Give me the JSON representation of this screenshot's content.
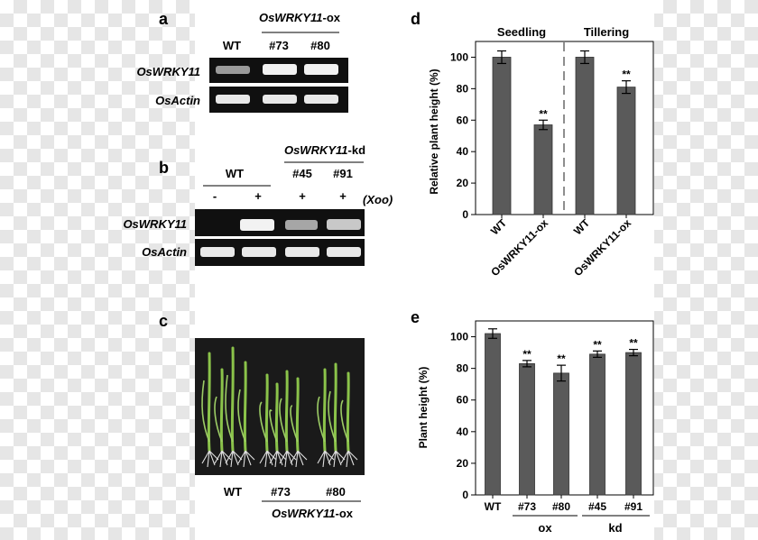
{
  "panel_labels": {
    "a": "a",
    "b": "b",
    "c": "c",
    "d": "d",
    "e": "e"
  },
  "colors": {
    "bar": "#5a5a5a",
    "gel_bg": "#101010",
    "gel_band": "#ffffff",
    "plant": "#8bc34a"
  },
  "panel_a": {
    "group_label_gene": "OsWRKY11",
    "group_label_suffix": "-ox",
    "lanes": [
      "WT",
      "#73",
      "#80"
    ],
    "rows": [
      "OsWRKY11",
      "OsActin"
    ]
  },
  "panel_b": {
    "wt_label": "WT",
    "group_label_gene": "OsWRKY11",
    "group_label_suffix": "-kd",
    "lines": [
      "#45",
      "#91"
    ],
    "treatments": [
      "-",
      "+",
      "+",
      "+"
    ],
    "xoo_label": "(Xoo)",
    "rows": [
      "OsWRKY11",
      "OsActin"
    ]
  },
  "panel_c": {
    "lanes": [
      "WT",
      "#73",
      "#80"
    ],
    "group_label_gene": "OsWRKY11",
    "group_label_suffix": "-ox"
  },
  "chart_data": [
    {
      "type": "bar",
      "panel": "d",
      "ylabel": "Relative plant height (%)",
      "stages": [
        "Seedling",
        "Tillering"
      ],
      "categories": [
        "WT",
        "OsWRKY11-ox",
        "WT",
        "OsWRKY11-ox"
      ],
      "values": [
        100,
        57,
        100,
        81
      ],
      "errors": [
        4,
        3,
        4,
        4
      ],
      "significance": [
        "",
        "**",
        "",
        "**"
      ],
      "yticks": [
        "0",
        "20",
        "40",
        "60",
        "80",
        "100"
      ],
      "ylim": [
        0,
        110
      ]
    },
    {
      "type": "bar",
      "panel": "e",
      "ylabel": "Plant height (%)",
      "categories": [
        "WT",
        "#73",
        "#80",
        "#45",
        "#91"
      ],
      "values": [
        102,
        83,
        77,
        89,
        90
      ],
      "errors": [
        3,
        2,
        5,
        2,
        2
      ],
      "significance": [
        "",
        "**",
        "**",
        "**",
        "**"
      ],
      "groups": [
        "ox",
        "kd"
      ],
      "yticks": [
        "0",
        "20",
        "40",
        "60",
        "80",
        "100"
      ],
      "ylim": [
        0,
        110
      ]
    }
  ]
}
